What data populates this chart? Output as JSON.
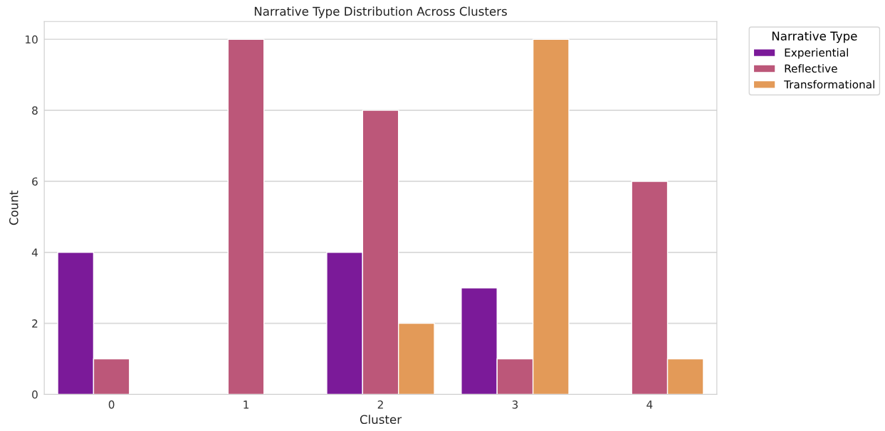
{
  "chart_data": {
    "type": "bar",
    "title": "Narrative Type Distribution Across Clusters",
    "xlabel": "Cluster",
    "ylabel": "Count",
    "legend_title": "Narrative Type",
    "categories": [
      "0",
      "1",
      "2",
      "3",
      "4"
    ],
    "series": [
      {
        "name": "Experiential",
        "color": "#7b1a99",
        "values": [
          4,
          null,
          4,
          3,
          null
        ]
      },
      {
        "name": "Reflective",
        "color": "#bc5779",
        "values": [
          1,
          10,
          8,
          1,
          6
        ]
      },
      {
        "name": "Transformational",
        "color": "#e39a58",
        "values": [
          null,
          null,
          2,
          10,
          1
        ]
      }
    ],
    "ylim": [
      0,
      10.5
    ],
    "yticks": [
      0,
      2,
      4,
      6,
      8,
      10
    ],
    "grid": "y",
    "legend": "top right"
  }
}
